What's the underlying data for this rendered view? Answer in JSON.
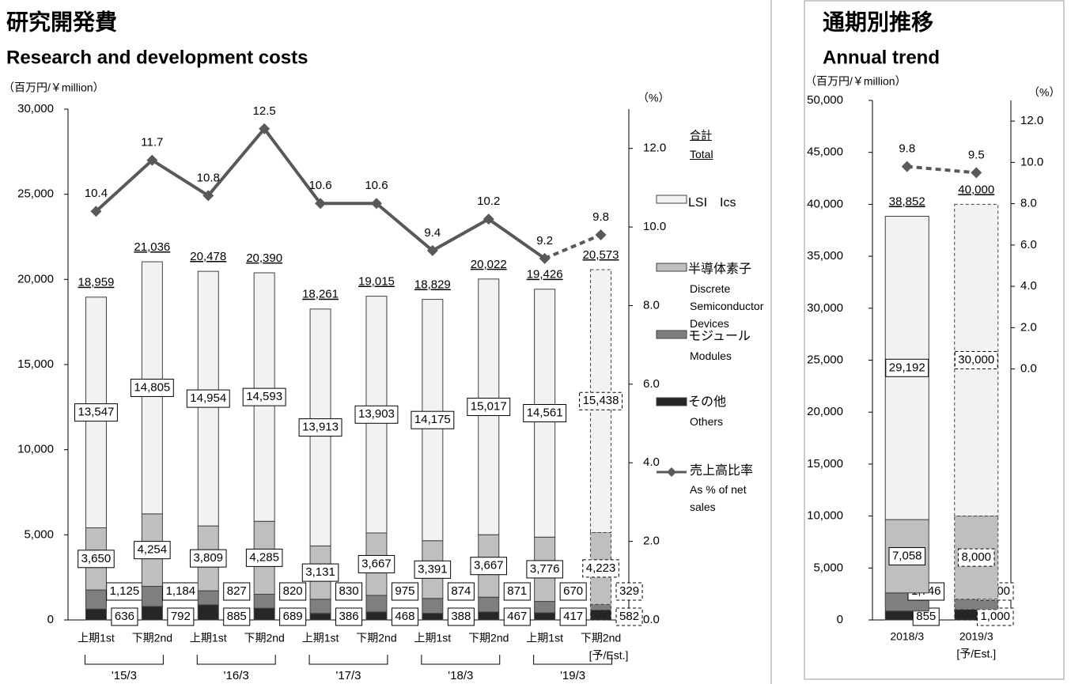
{
  "chart_data": [
    {
      "type": "bar",
      "stacked": true,
      "title": "研究開発費",
      "subtitle": "Research and development costs",
      "y_label": "（百万円/￥million）",
      "y2_label": "（%）",
      "categories": [
        "上期1st",
        "下期2nd",
        "上期1st",
        "下期2nd",
        "上期1st",
        "下期2nd",
        "上期1st",
        "下期2nd",
        "上期1st",
        "下期2nd"
      ],
      "groups": [
        "'15/3",
        "'16/3",
        "'17/3",
        "'18/3",
        "'19/3"
      ],
      "estimate_label": "[予/Est.]",
      "estimate": [
        false,
        false,
        false,
        false,
        false,
        false,
        false,
        false,
        false,
        true
      ],
      "series": [
        {
          "name": "その他",
          "name_en": "Others",
          "color": "#262626",
          "values": [
            636,
            792,
            885,
            689,
            386,
            468,
            388,
            467,
            417,
            582
          ]
        },
        {
          "name": "モジュール",
          "name_en": "Modules",
          "color": "#7f7f7f",
          "values": [
            1125,
            1184,
            827,
            820,
            830,
            975,
            874,
            871,
            670,
            329
          ],
          "value_labels": [
            "1,125",
            "1,184",
            "827",
            "820",
            "830",
            "975",
            "874",
            "871",
            "670",
            "329"
          ]
        },
        {
          "name": "半導体素子",
          "name_en": "Discrete Semiconductor Devices",
          "color": "#bfbfbf",
          "values": [
            3650,
            4254,
            3809,
            4285,
            3131,
            3667,
            3391,
            3667,
            3776,
            4223
          ],
          "value_labels": [
            "3,650",
            "4,254",
            "3,809",
            "4,285",
            "3,131",
            "3,667",
            "3,391",
            "3,667",
            "3,776",
            "4,223"
          ]
        },
        {
          "name": "LSI　Ics",
          "color": "#f2f2f2",
          "values": [
            13547,
            14805,
            14954,
            14593,
            13913,
            13903,
            14175,
            15017,
            14561,
            15438
          ],
          "value_labels": [
            "13,547",
            "14,805",
            "14,954",
            "14,593",
            "13,913",
            "13,903",
            "14,175",
            "15,017",
            "14,561",
            "15,438"
          ]
        }
      ],
      "totals": {
        "name": "合計",
        "name_en": "Total",
        "values": [
          18959,
          21036,
          20478,
          20390,
          18261,
          19015,
          18829,
          20022,
          19426,
          20573
        ],
        "value_labels": [
          "18,959",
          "21,036",
          "20,478",
          "20,390",
          "18,261",
          "19,015",
          "18,829",
          "20,022",
          "19,426",
          "20,573"
        ]
      },
      "ratio": {
        "name": "売上高比率",
        "name_en": "As % of net sales",
        "axis": "y2",
        "color": "#595959",
        "values": [
          10.4,
          11.7,
          10.8,
          12.5,
          10.6,
          10.6,
          9.4,
          10.2,
          9.2,
          9.8
        ]
      },
      "ylim": [
        0,
        30000
      ],
      "yticks": [
        0,
        {
          "value": 5000,
          "label": "5,000"
        },
        {
          "value": 10000,
          "label": "10,000"
        },
        {
          "value": 15000,
          "label": "15,000"
        },
        {
          "value": 20000,
          "label": "20,000"
        },
        {
          "value": 25000,
          "label": "25,000"
        },
        {
          "value": 30000,
          "label": "30,000"
        }
      ],
      "y2lim": [
        0,
        13
      ],
      "y2ticks": [
        {
          "value": 0,
          "label": "0.0"
        },
        {
          "value": 2,
          "label": "2.0"
        },
        {
          "value": 4,
          "label": "4.0"
        },
        {
          "value": 6,
          "label": "6.0"
        },
        {
          "value": 8,
          "label": "8.0"
        },
        {
          "value": 10,
          "label": "10.0"
        },
        {
          "value": 12,
          "label": "12.0"
        }
      ]
    },
    {
      "type": "bar",
      "stacked": true,
      "title": "通期別推移",
      "subtitle": "Annual trend",
      "y_label": "（百万円/￥million）",
      "y2_label": "（%）",
      "categories": [
        "2018/3",
        "2019/3"
      ],
      "estimate_label": "[予/Est.]",
      "estimate": [
        false,
        true
      ],
      "series": [
        {
          "name": "その他",
          "name_en": "Others",
          "color": "#262626",
          "values": [
            855,
            1000
          ],
          "value_labels": [
            "855",
            "1,000"
          ]
        },
        {
          "name": "モジュール",
          "name_en": "Modules",
          "color": "#7f7f7f",
          "values": [
            1746,
            1000
          ],
          "value_labels": [
            "1,746",
            "1,000"
          ]
        },
        {
          "name": "半導体素子",
          "name_en": "Discrete Semiconductor Devices",
          "color": "#bfbfbf",
          "values": [
            7058,
            8000
          ],
          "value_labels": [
            "7,058",
            "8,000"
          ]
        },
        {
          "name": "LSI　Ics",
          "color": "#f2f2f2",
          "values": [
            29192,
            30000
          ],
          "value_labels": [
            "29,192",
            "30,000"
          ]
        }
      ],
      "totals": {
        "name": "合計",
        "name_en": "Total",
        "values": [
          38852,
          40000
        ],
        "value_labels": [
          "38,852",
          "40,000"
        ]
      },
      "ratio": {
        "name": "売上高比率",
        "name_en": "As % of net sales",
        "axis": "y2",
        "color": "#595959",
        "values": [
          9.8,
          9.5
        ]
      },
      "ylim": [
        0,
        50000
      ],
      "yticks": [
        0,
        {
          "value": 5000,
          "label": "5,000"
        },
        {
          "value": 10000,
          "label": "10,000"
        },
        {
          "value": 15000,
          "label": "15,000"
        },
        {
          "value": 20000,
          "label": "20,000"
        },
        {
          "value": 25000,
          "label": "25,000"
        },
        {
          "value": 30000,
          "label": "30,000"
        },
        {
          "value": 35000,
          "label": "35,000"
        },
        {
          "value": 40000,
          "label": "40,000"
        },
        {
          "value": 45000,
          "label": "45,000"
        },
        {
          "value": 50000,
          "label": "50,000"
        }
      ],
      "y2lim": [
        -12.15,
        13
      ],
      "y2ticks": [
        {
          "value": 0,
          "label": "0.0"
        },
        {
          "value": 2,
          "label": "2.0"
        },
        {
          "value": 4,
          "label": "4.0"
        },
        {
          "value": 6,
          "label": "6.0"
        },
        {
          "value": 8,
          "label": "8.0"
        },
        {
          "value": 10,
          "label": "10.0"
        },
        {
          "value": 12,
          "label": "12.0"
        }
      ]
    }
  ]
}
